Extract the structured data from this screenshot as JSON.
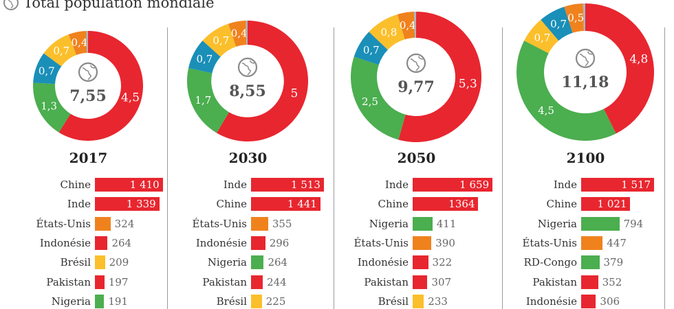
{
  "header": {
    "title": "Total population mondiale",
    "icon": "globe-icon"
  },
  "colors": {
    "red": "#e8262f",
    "green": "#4bae4f",
    "blue": "#1a8fb8",
    "yellow": "#fbbf2b",
    "orange": "#f0821e",
    "grey": "#a9b6c0",
    "total_text": "#555555"
  },
  "chart_data": [
    {
      "type": "pie",
      "year": "2017",
      "total": "7,55",
      "segments": [
        {
          "color": "red",
          "value": 4.5,
          "label": "4,5"
        },
        {
          "color": "green",
          "value": 1.3,
          "label": "1,3"
        },
        {
          "color": "blue",
          "value": 0.7,
          "label": "0,7"
        },
        {
          "color": "yellow",
          "value": 0.7,
          "label": "0,7"
        },
        {
          "color": "orange",
          "value": 0.4,
          "label": "0,4"
        },
        {
          "color": "grey",
          "value": 0.04,
          "label": ""
        }
      ],
      "ranking": [
        {
          "country": "Chine",
          "value": 1410,
          "text": "1 410",
          "color": "red"
        },
        {
          "country": "Inde",
          "value": 1339,
          "text": "1 339",
          "color": "red"
        },
        {
          "country": "États-Unis",
          "value": 324,
          "text": "324",
          "color": "orange"
        },
        {
          "country": "Indonésie",
          "value": 264,
          "text": "264",
          "color": "red"
        },
        {
          "country": "Brésil",
          "value": 209,
          "text": "209",
          "color": "yellow"
        },
        {
          "country": "Pakistan",
          "value": 197,
          "text": "197",
          "color": "red"
        },
        {
          "country": "Nigeria",
          "value": 191,
          "text": "191",
          "color": "green"
        }
      ]
    },
    {
      "type": "pie",
      "year": "2030",
      "total": "8,55",
      "segments": [
        {
          "color": "red",
          "value": 5,
          "label": "5"
        },
        {
          "color": "green",
          "value": 1.7,
          "label": "1,7"
        },
        {
          "color": "blue",
          "value": 0.7,
          "label": "0,7"
        },
        {
          "color": "yellow",
          "value": 0.7,
          "label": "0,7"
        },
        {
          "color": "orange",
          "value": 0.4,
          "label": "0,4"
        },
        {
          "color": "grey",
          "value": 0.04,
          "label": ""
        }
      ],
      "ranking": [
        {
          "country": "Inde",
          "value": 1513,
          "text": "1 513",
          "color": "red"
        },
        {
          "country": "Chine",
          "value": 1441,
          "text": "1 441",
          "color": "red"
        },
        {
          "country": "États-Unis",
          "value": 355,
          "text": "355",
          "color": "orange"
        },
        {
          "country": "Indonésie",
          "value": 296,
          "text": "296",
          "color": "red"
        },
        {
          "country": "Nigeria",
          "value": 264,
          "text": "264",
          "color": "green"
        },
        {
          "country": "Pakistan",
          "value": 244,
          "text": "244",
          "color": "red"
        },
        {
          "country": "Brésil",
          "value": 225,
          "text": "225",
          "color": "yellow"
        }
      ]
    },
    {
      "type": "pie",
      "year": "2050",
      "total": "9,77",
      "segments": [
        {
          "color": "red",
          "value": 5.3,
          "label": "5,3"
        },
        {
          "color": "green",
          "value": 2.5,
          "label": "2,5"
        },
        {
          "color": "blue",
          "value": 0.7,
          "label": "0,7"
        },
        {
          "color": "yellow",
          "value": 0.8,
          "label": "0,8"
        },
        {
          "color": "orange",
          "value": 0.4,
          "label": "0,4"
        },
        {
          "color": "grey",
          "value": 0.05,
          "label": ""
        }
      ],
      "ranking": [
        {
          "country": "Inde",
          "value": 1659,
          "text": "1 659",
          "color": "red"
        },
        {
          "country": "Chine",
          "value": 1364,
          "text": "1364",
          "color": "red"
        },
        {
          "country": "Nigeria",
          "value": 411,
          "text": "411",
          "color": "green"
        },
        {
          "country": "États-Unis",
          "value": 390,
          "text": "390",
          "color": "orange"
        },
        {
          "country": "Indonésie",
          "value": 322,
          "text": "322",
          "color": "red"
        },
        {
          "country": "Pakistan",
          "value": 307,
          "text": "307",
          "color": "red"
        },
        {
          "country": "Brésil",
          "value": 233,
          "text": "233",
          "color": "yellow"
        }
      ]
    },
    {
      "type": "pie",
      "year": "2100",
      "total": "11,18",
      "segments": [
        {
          "color": "red",
          "value": 4.8,
          "label": "4,8"
        },
        {
          "color": "green",
          "value": 4.5,
          "label": "4,5"
        },
        {
          "color": "yellow",
          "value": 0.7,
          "label": "0,7"
        },
        {
          "color": "blue",
          "value": 0.7,
          "label": "0,7"
        },
        {
          "color": "orange",
          "value": 0.5,
          "label": "0,5"
        },
        {
          "color": "grey",
          "value": 0.06,
          "label": ""
        }
      ],
      "ranking": [
        {
          "country": "Inde",
          "value": 1517,
          "text": "1 517",
          "color": "red"
        },
        {
          "country": "Chine",
          "value": 1021,
          "text": "1 021",
          "color": "red"
        },
        {
          "country": "Nigeria",
          "value": 794,
          "text": "794",
          "color": "green"
        },
        {
          "country": "États-Unis",
          "value": 447,
          "text": "447",
          "color": "orange"
        },
        {
          "country": "RD-Congo",
          "value": 379,
          "text": "379",
          "color": "green"
        },
        {
          "country": "Pakistan",
          "value": 352,
          "text": "352",
          "color": "red"
        },
        {
          "country": "Indonésie",
          "value": 306,
          "text": "306",
          "color": "red"
        }
      ]
    }
  ]
}
